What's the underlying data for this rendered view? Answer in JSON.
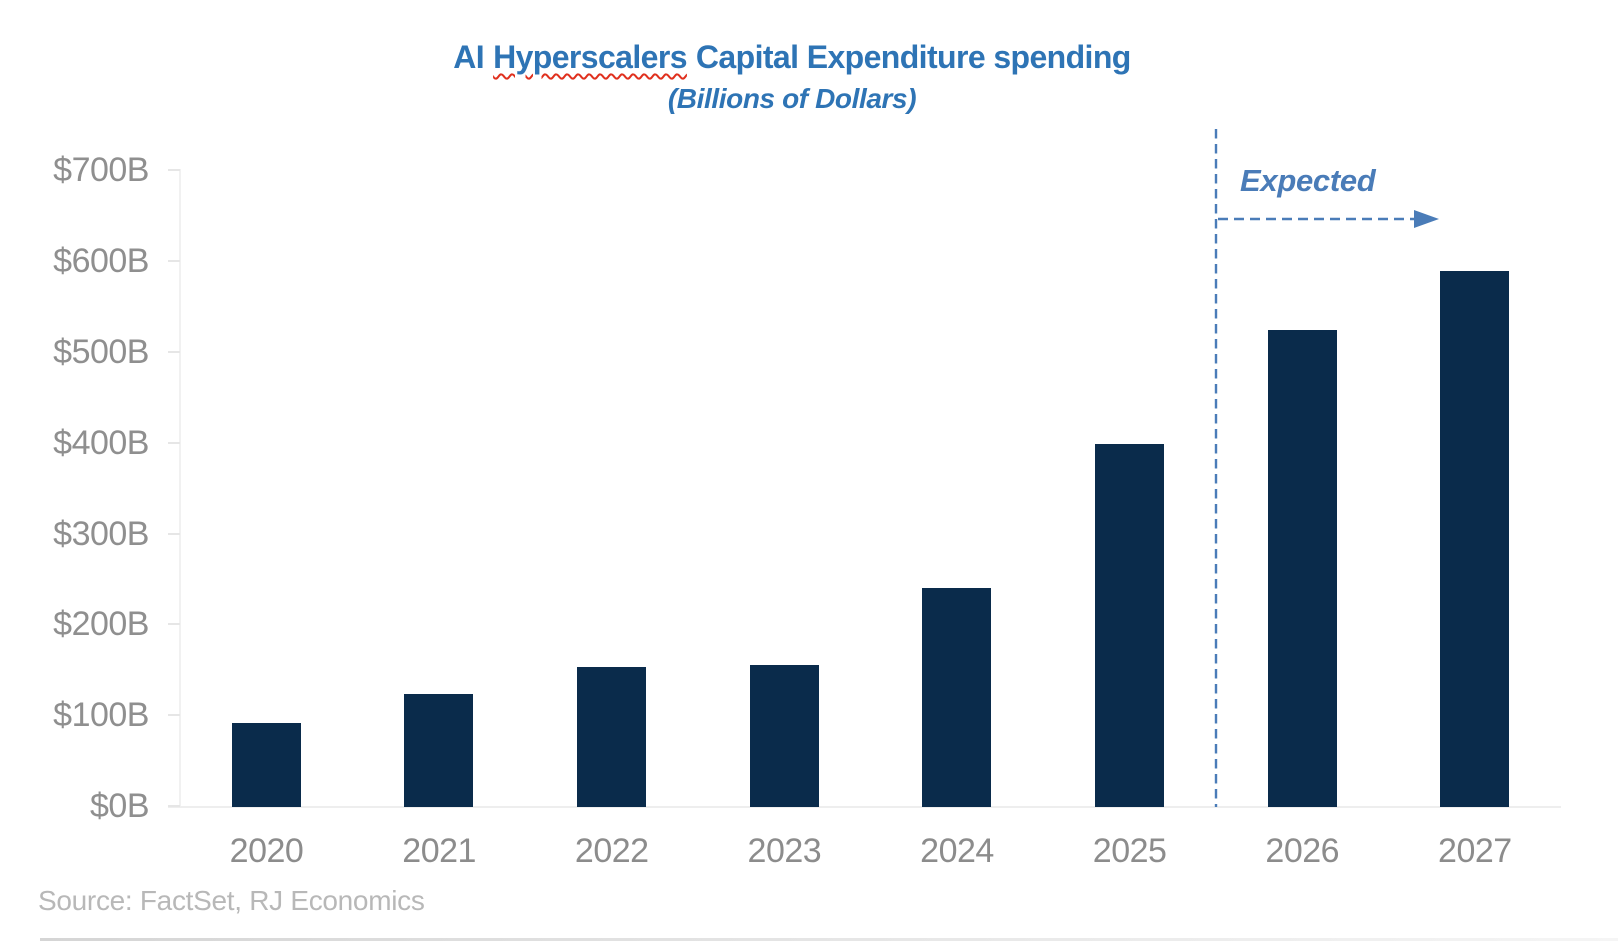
{
  "chart_data": {
    "type": "bar",
    "title": "AI Hyperscalers Capital Expenditure spending",
    "title_parts": {
      "prefix": "AI",
      "misspelled": "Hyperscalers",
      "suffix": "Capital Expenditure spending"
    },
    "subtitle": "(Billions of Dollars)",
    "categories": [
      "2020",
      "2021",
      "2022",
      "2023",
      "2024",
      "2025",
      "2026",
      "2027"
    ],
    "values": [
      92,
      124,
      154,
      156,
      241,
      400,
      525,
      590
    ],
    "unit": "billions of dollars",
    "ylim": [
      0,
      700
    ],
    "ytick_step": 100,
    "ytick_labels": [
      "$0B",
      "$100B",
      "$200B",
      "$300B",
      "$400B",
      "$500B",
      "$600B",
      "$700B"
    ],
    "grid": "none",
    "legend": "none",
    "annotation": {
      "label": "Expected",
      "applies_to": [
        "2026",
        "2027"
      ],
      "divider_between": [
        "2025",
        "2026"
      ]
    },
    "source": "Source: FactSet, RJ Economics",
    "colors": {
      "bar": "#0a2b4b",
      "title": "#2e74b5",
      "annotation": "#4a7cb8",
      "axis_text": "#8f8f8f",
      "source_text": "#b8b8b8",
      "spellcheck_underline": "#e0301e"
    }
  }
}
